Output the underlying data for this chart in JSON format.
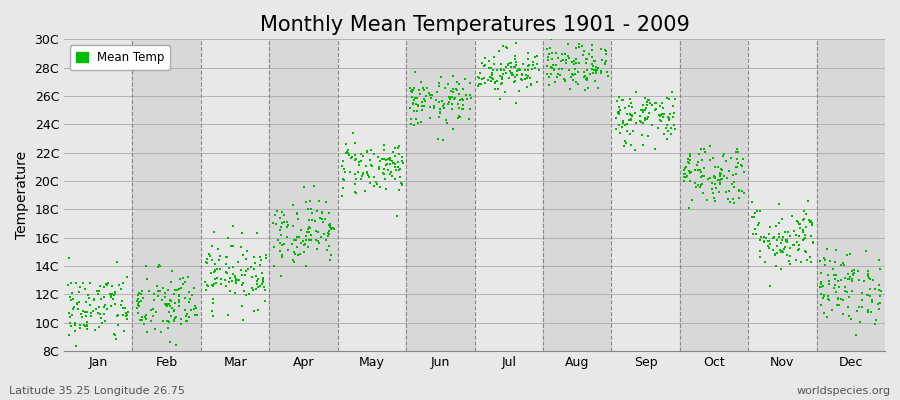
{
  "title": "Monthly Mean Temperatures 1901 - 2009",
  "ylabel": "Temperature",
  "lat_lon_text": "Latitude 35.25 Longitude 26.75",
  "watermark": "worldspecies.org",
  "legend_label": "Mean Temp",
  "ytick_labels": [
    "8C",
    "10C",
    "12C",
    "14C",
    "16C",
    "18C",
    "20C",
    "22C",
    "24C",
    "26C",
    "28C",
    "30C"
  ],
  "ytick_values": [
    8,
    10,
    12,
    14,
    16,
    18,
    20,
    22,
    24,
    26,
    28,
    30
  ],
  "ylim": [
    8,
    30
  ],
  "month_names": [
    "Jan",
    "Feb",
    "Mar",
    "Apr",
    "May",
    "Jun",
    "Jul",
    "Aug",
    "Sep",
    "Oct",
    "Nov",
    "Dec"
  ],
  "monthly_means": [
    11.0,
    11.2,
    13.5,
    16.5,
    21.0,
    25.5,
    27.8,
    28.0,
    24.5,
    20.5,
    16.0,
    12.5
  ],
  "monthly_stds": [
    1.3,
    1.3,
    1.2,
    1.2,
    1.0,
    0.9,
    0.8,
    0.8,
    1.0,
    1.1,
    1.2,
    1.3
  ],
  "n_years": 109,
  "marker_color": "#00BB00",
  "marker_size": 3,
  "background_color": "#E8E8E8",
  "plot_bg_light": "#E8E8E8",
  "plot_bg_dark": "#D8D8D8",
  "title_fontsize": 15,
  "axis_label_fontsize": 10,
  "tick_fontsize": 9
}
